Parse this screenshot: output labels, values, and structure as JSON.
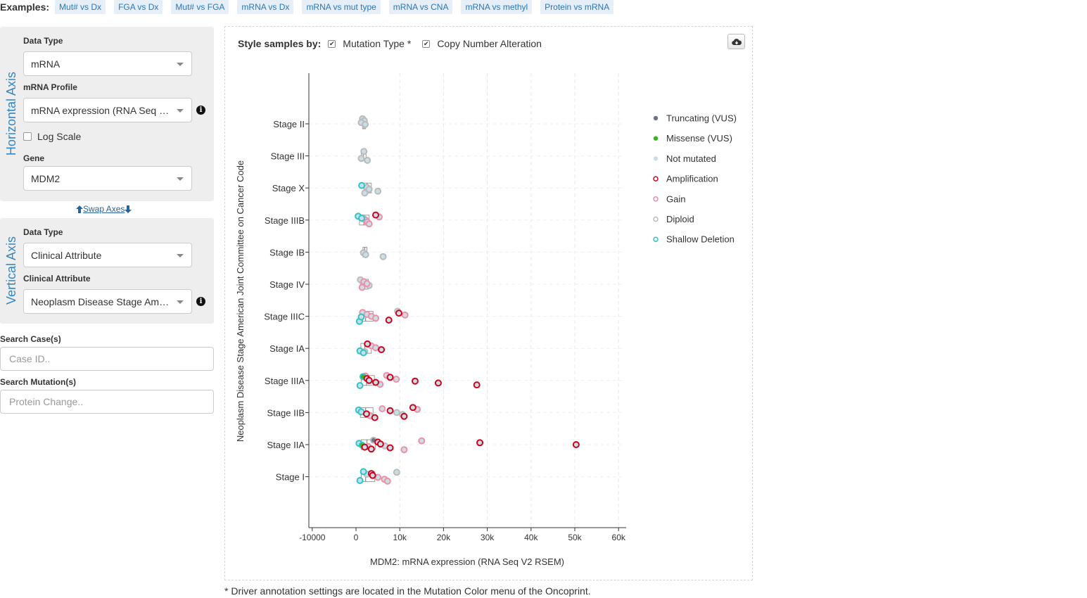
{
  "examples": {
    "label": "Examples:",
    "items": [
      "Mut# vs Dx",
      "FGA vs Dx",
      "Mut# vs FGA",
      "mRNA vs Dx",
      "mRNA vs mut type",
      "mRNA vs CNA",
      "mRNA vs methyl",
      "Protein vs mRNA"
    ]
  },
  "horizontal_axis": {
    "title": "Horizontal Axis",
    "data_type_label": "Data Type",
    "data_type_value": "mRNA",
    "profile_label": "mRNA Profile",
    "profile_value": "mRNA expression (RNA Seq V2 RSEM)",
    "log_scale_label": "Log Scale",
    "log_scale_checked": false,
    "gene_label": "Gene",
    "gene_value": "MDM2"
  },
  "swap_axes_label": " Swap Axes ",
  "vertical_axis": {
    "title": "Vertical Axis",
    "data_type_label": "Data Type",
    "data_type_value": "Clinical Attribute",
    "attribute_label": "Clinical Attribute",
    "attribute_value": "Neoplasm Disease Stage American Joint Committee on Cancer Code"
  },
  "search_case": {
    "label": "Search Case(s)",
    "placeholder": "Case ID.."
  },
  "search_mutation": {
    "label": "Search Mutation(s)",
    "placeholder": "Protein Change.."
  },
  "style_by": {
    "label": "Style samples by:",
    "options": [
      {
        "label": "Mutation Type *",
        "checked": true
      },
      {
        "label": "Copy Number Alteration",
        "checked": true
      }
    ]
  },
  "footnote": "* Driver annotation settings are located in the Mutation Color menu of the Oncoprint.",
  "colors": {
    "truncating": "#6b7480",
    "missense": "#3ab51d",
    "not_mutated": "#c8dfe8",
    "amplification": "#d0021b",
    "gain": "#ef8fa7",
    "diploid": "#bbbbbb",
    "shallow_deletion": "#2ec4c8",
    "axis_title": "#3786c2"
  },
  "icons": {
    "info": "info-icon",
    "download": "cloud-download-icon",
    "swap_up": "arrow-up-icon",
    "swap_down": "arrow-down-icon"
  },
  "chart_data": {
    "type": "scatter",
    "orientation": "horizontal-categorical-y",
    "xlabel": "MDM2: mRNA expression (RNA Seq V2 RSEM)",
    "ylabel": "Neoplasm Disease Stage American Joint Committee on Cancer Code",
    "xlim": [
      -10000,
      62000
    ],
    "xticks": [
      -10000,
      0,
      10000,
      20000,
      30000,
      40000,
      50000,
      60000
    ],
    "xtick_labels": [
      "-10000",
      "0",
      "10k",
      "20k",
      "30k",
      "40k",
      "50k",
      "60k"
    ],
    "grid": true,
    "legend_position": "right",
    "categories": [
      "Stage II",
      "Stage III",
      "Stage X",
      "Stage IIIB",
      "Stage IB",
      "Stage IV",
      "Stage IIIC",
      "Stage IA",
      "Stage IIIA",
      "Stage IIB",
      "Stage IIA",
      "Stage I"
    ],
    "legend": [
      {
        "label": "Truncating (VUS)",
        "marker": "filled",
        "color_key": "truncating"
      },
      {
        "label": "Missense (VUS)",
        "marker": "filled",
        "color_key": "missense"
      },
      {
        "label": "Not mutated",
        "marker": "filled",
        "color_key": "not_mutated"
      },
      {
        "label": "Amplification",
        "marker": "ring",
        "color_key": "amplification"
      },
      {
        "label": "Gain",
        "marker": "ring",
        "color_key": "gain"
      },
      {
        "label": "Diploid",
        "marker": "ring",
        "color_key": "diploid"
      },
      {
        "label": "Shallow Deletion",
        "marker": "ring",
        "color_key": "shallow_deletion"
      }
    ],
    "boxes": [
      {
        "category": "Stage II",
        "q1": 1500,
        "median": 1800,
        "q3": 2200
      },
      {
        "category": "Stage III",
        "q1": 1200,
        "median": 1700,
        "q3": 2300
      },
      {
        "category": "Stage X",
        "q1": 1800,
        "median": 2500,
        "q3": 3500
      },
      {
        "category": "Stage IIIB",
        "q1": 800,
        "median": 1800,
        "q3": 3000
      },
      {
        "category": "Stage IB",
        "q1": 1600,
        "median": 2000,
        "q3": 2500
      },
      {
        "category": "Stage IV",
        "q1": 1000,
        "median": 1700,
        "q3": 2800
      },
      {
        "category": "Stage IIIC",
        "q1": 1200,
        "median": 2200,
        "q3": 3900
      },
      {
        "category": "Stage IA",
        "q1": 1100,
        "median": 2000,
        "q3": 3500
      },
      {
        "category": "Stage IIIA",
        "q1": 1200,
        "median": 2400,
        "q3": 4200
      },
      {
        "category": "Stage IIB",
        "q1": 1000,
        "median": 2200,
        "q3": 3900
      },
      {
        "category": "Stage IIA",
        "q1": 1200,
        "median": 2500,
        "q3": 4400
      },
      {
        "category": "Stage I",
        "q1": 1200,
        "median": 2200,
        "q3": 4300
      }
    ],
    "points": [
      {
        "category": "Stage II",
        "x": 1500,
        "cna": "diploid",
        "mut": "not_mutated"
      },
      {
        "category": "Stage II",
        "x": 1900,
        "cna": "diploid",
        "mut": "not_mutated"
      },
      {
        "category": "Stage II",
        "x": 1200,
        "cna": "diploid",
        "mut": "not_mutated"
      },
      {
        "category": "Stage II",
        "x": 2100,
        "cna": "diploid",
        "mut": "not_mutated"
      },
      {
        "category": "Stage III",
        "x": 1200,
        "cna": "diploid",
        "mut": "not_mutated"
      },
      {
        "category": "Stage III",
        "x": 2600,
        "cna": "diploid",
        "mut": "not_mutated"
      },
      {
        "category": "Stage III",
        "x": 1800,
        "cna": "diploid",
        "mut": "not_mutated"
      },
      {
        "category": "Stage X",
        "x": 1300,
        "cna": "shallow_deletion",
        "mut": "not_mutated"
      },
      {
        "category": "Stage X",
        "x": 2500,
        "cna": "diploid",
        "mut": "not_mutated"
      },
      {
        "category": "Stage X",
        "x": 3000,
        "cna": "diploid",
        "mut": "not_mutated"
      },
      {
        "category": "Stage X",
        "x": 5000,
        "cna": "diploid",
        "mut": "not_mutated"
      },
      {
        "category": "Stage X",
        "x": 2000,
        "cna": "diploid",
        "mut": "not_mutated"
      },
      {
        "category": "Stage IIIB",
        "x": 500,
        "cna": "shallow_deletion",
        "mut": "not_mutated"
      },
      {
        "category": "Stage IIIB",
        "x": 1300,
        "cna": "shallow_deletion",
        "mut": "not_mutated"
      },
      {
        "category": "Stage IIIB",
        "x": 2200,
        "cna": "gain",
        "mut": "not_mutated"
      },
      {
        "category": "Stage IIIB",
        "x": 2600,
        "cna": "gain",
        "mut": "not_mutated"
      },
      {
        "category": "Stage IIIB",
        "x": 3000,
        "cna": "gain",
        "mut": "not_mutated"
      },
      {
        "category": "Stage IIIB",
        "x": 4500,
        "cna": "amplification",
        "mut": "not_mutated"
      },
      {
        "category": "Stage IIIB",
        "x": 5300,
        "cna": "gain",
        "mut": "not_mutated"
      },
      {
        "category": "Stage IIIB",
        "x": 1800,
        "cna": "diploid",
        "mut": "not_mutated"
      },
      {
        "category": "Stage IB",
        "x": 1700,
        "cna": "diploid",
        "mut": "not_mutated"
      },
      {
        "category": "Stage IB",
        "x": 2200,
        "cna": "diploid",
        "mut": "not_mutated"
      },
      {
        "category": "Stage IB",
        "x": 6200,
        "cna": "diploid",
        "mut": "not_mutated"
      },
      {
        "category": "Stage IV",
        "x": 1000,
        "cna": "diploid",
        "mut": "not_mutated"
      },
      {
        "category": "Stage IV",
        "x": 1800,
        "cna": "gain",
        "mut": "not_mutated"
      },
      {
        "category": "Stage IV",
        "x": 2500,
        "cna": "gain",
        "mut": "not_mutated"
      },
      {
        "category": "Stage IV",
        "x": 3000,
        "cna": "diploid",
        "mut": "not_mutated"
      },
      {
        "category": "Stage IV",
        "x": 1400,
        "cna": "gain",
        "mut": "not_mutated"
      },
      {
        "category": "Stage IIIC",
        "x": 800,
        "cna": "shallow_deletion",
        "mut": "not_mutated"
      },
      {
        "category": "Stage IIIC",
        "x": 1500,
        "cna": "gain",
        "mut": "not_mutated"
      },
      {
        "category": "Stage IIIC",
        "x": 2500,
        "cna": "gain",
        "mut": "not_mutated"
      },
      {
        "category": "Stage IIIC",
        "x": 3500,
        "cna": "gain",
        "mut": "not_mutated"
      },
      {
        "category": "Stage IIIC",
        "x": 4500,
        "cna": "gain",
        "mut": "not_mutated"
      },
      {
        "category": "Stage IIIC",
        "x": 7500,
        "cna": "amplification",
        "mut": "not_mutated"
      },
      {
        "category": "Stage IIIC",
        "x": 9500,
        "cna": "diploid",
        "mut": "not_mutated"
      },
      {
        "category": "Stage IIIC",
        "x": 9800,
        "cna": "amplification",
        "mut": "not_mutated"
      },
      {
        "category": "Stage IIIC",
        "x": 11200,
        "cna": "gain",
        "mut": "not_mutated"
      },
      {
        "category": "Stage IIIC",
        "x": 1200,
        "cna": "shallow_deletion",
        "mut": "not_mutated"
      },
      {
        "category": "Stage IA",
        "x": 900,
        "cna": "shallow_deletion",
        "mut": "not_mutated"
      },
      {
        "category": "Stage IA",
        "x": 1700,
        "cna": "shallow_deletion",
        "mut": "not_mutated"
      },
      {
        "category": "Stage IA",
        "x": 2600,
        "cna": "amplification",
        "mut": "not_mutated"
      },
      {
        "category": "Stage IA",
        "x": 3500,
        "cna": "gain",
        "mut": "not_mutated"
      },
      {
        "category": "Stage IA",
        "x": 4500,
        "cna": "gain",
        "mut": "not_mutated"
      },
      {
        "category": "Stage IA",
        "x": 5800,
        "cna": "amplification",
        "mut": "not_mutated"
      },
      {
        "category": "Stage IA",
        "x": 2000,
        "cna": "diploid",
        "mut": "not_mutated"
      },
      {
        "category": "Stage IIIA",
        "x": 900,
        "cna": "shallow_deletion",
        "mut": "not_mutated"
      },
      {
        "category": "Stage IIIA",
        "x": 1600,
        "cna": "shallow_deletion",
        "mut": "missense"
      },
      {
        "category": "Stage IIIA",
        "x": 2500,
        "cna": "amplification",
        "mut": "not_mutated"
      },
      {
        "category": "Stage IIIA",
        "x": 3000,
        "cna": "amplification",
        "mut": "not_mutated"
      },
      {
        "category": "Stage IIIA",
        "x": 4500,
        "cna": "amplification",
        "mut": "not_mutated"
      },
      {
        "category": "Stage IIIA",
        "x": 5500,
        "cna": "gain",
        "mut": "not_mutated"
      },
      {
        "category": "Stage IIIA",
        "x": 7000,
        "cna": "gain",
        "mut": "not_mutated"
      },
      {
        "category": "Stage IIIA",
        "x": 7800,
        "cna": "amplification",
        "mut": "not_mutated"
      },
      {
        "category": "Stage IIIA",
        "x": 9200,
        "cna": "gain",
        "mut": "not_mutated"
      },
      {
        "category": "Stage IIIA",
        "x": 13500,
        "cna": "amplification",
        "mut": "not_mutated"
      },
      {
        "category": "Stage IIIA",
        "x": 18800,
        "cna": "amplification",
        "mut": "not_mutated"
      },
      {
        "category": "Stage IIIA",
        "x": 27600,
        "cna": "amplification",
        "mut": "not_mutated"
      },
      {
        "category": "Stage IIIA",
        "x": 2200,
        "cna": "gain",
        "mut": "not_mutated"
      },
      {
        "category": "Stage IIB",
        "x": 600,
        "cna": "shallow_deletion",
        "mut": "not_mutated"
      },
      {
        "category": "Stage IIB",
        "x": 1200,
        "cna": "shallow_deletion",
        "mut": "not_mutated"
      },
      {
        "category": "Stage IIB",
        "x": 2400,
        "cna": "amplification",
        "mut": "not_mutated"
      },
      {
        "category": "Stage IIB",
        "x": 3200,
        "cna": "gain",
        "mut": "not_mutated"
      },
      {
        "category": "Stage IIB",
        "x": 4300,
        "cna": "amplification",
        "mut": "not_mutated"
      },
      {
        "category": "Stage IIB",
        "x": 6000,
        "cna": "gain",
        "mut": "not_mutated"
      },
      {
        "category": "Stage IIB",
        "x": 7800,
        "cna": "amplification",
        "mut": "not_mutated"
      },
      {
        "category": "Stage IIB",
        "x": 9300,
        "cna": "diploid",
        "mut": "not_mutated"
      },
      {
        "category": "Stage IIB",
        "x": 10600,
        "cna": "diploid",
        "mut": "not_mutated"
      },
      {
        "category": "Stage IIB",
        "x": 11000,
        "cna": "amplification",
        "mut": "not_mutated"
      },
      {
        "category": "Stage IIB",
        "x": 13000,
        "cna": "amplification",
        "mut": "not_mutated"
      },
      {
        "category": "Stage IIB",
        "x": 14000,
        "cna": "gain",
        "mut": "not_mutated"
      },
      {
        "category": "Stage IIA",
        "x": 700,
        "cna": "shallow_deletion",
        "mut": "not_mutated"
      },
      {
        "category": "Stage IIA",
        "x": 1400,
        "cna": "shallow_deletion",
        "mut": "missense"
      },
      {
        "category": "Stage IIA",
        "x": 2000,
        "cna": "amplification",
        "mut": "not_mutated"
      },
      {
        "category": "Stage IIA",
        "x": 3500,
        "cna": "amplification",
        "mut": "not_mutated"
      },
      {
        "category": "Stage IIA",
        "x": 4000,
        "cna": "diploid",
        "mut": "truncating"
      },
      {
        "category": "Stage IIA",
        "x": 5000,
        "cna": "amplification",
        "mut": "not_mutated"
      },
      {
        "category": "Stage IIA",
        "x": 5600,
        "cna": "amplification",
        "mut": "not_mutated"
      },
      {
        "category": "Stage IIA",
        "x": 6600,
        "cna": "diploid",
        "mut": "not_mutated"
      },
      {
        "category": "Stage IIA",
        "x": 7800,
        "cna": "amplification",
        "mut": "not_mutated"
      },
      {
        "category": "Stage IIA",
        "x": 11000,
        "cna": "gain",
        "mut": "not_mutated"
      },
      {
        "category": "Stage IIA",
        "x": 15000,
        "cna": "gain",
        "mut": "not_mutated"
      },
      {
        "category": "Stage IIA",
        "x": 28300,
        "cna": "amplification",
        "mut": "not_mutated"
      },
      {
        "category": "Stage IIA",
        "x": 50300,
        "cna": "amplification",
        "mut": "not_mutated"
      },
      {
        "category": "Stage IIA",
        "x": 2800,
        "cna": "gain",
        "mut": "not_mutated"
      },
      {
        "category": "Stage I",
        "x": 900,
        "cna": "shallow_deletion",
        "mut": "not_mutated"
      },
      {
        "category": "Stage I",
        "x": 1700,
        "cna": "shallow_deletion",
        "mut": "not_mutated"
      },
      {
        "category": "Stage I",
        "x": 3500,
        "cna": "amplification",
        "mut": "not_mutated"
      },
      {
        "category": "Stage I",
        "x": 3800,
        "cna": "amplification",
        "mut": "not_mutated"
      },
      {
        "category": "Stage I",
        "x": 5000,
        "cna": "gain",
        "mut": "not_mutated"
      },
      {
        "category": "Stage I",
        "x": 6500,
        "cna": "gain",
        "mut": "not_mutated"
      },
      {
        "category": "Stage I",
        "x": 7200,
        "cna": "gain",
        "mut": "not_mutated"
      },
      {
        "category": "Stage I",
        "x": 9300,
        "cna": "diploid",
        "mut": "not_mutated"
      },
      {
        "category": "Stage I",
        "x": 2500,
        "cna": "diploid",
        "mut": "not_mutated"
      }
    ]
  }
}
